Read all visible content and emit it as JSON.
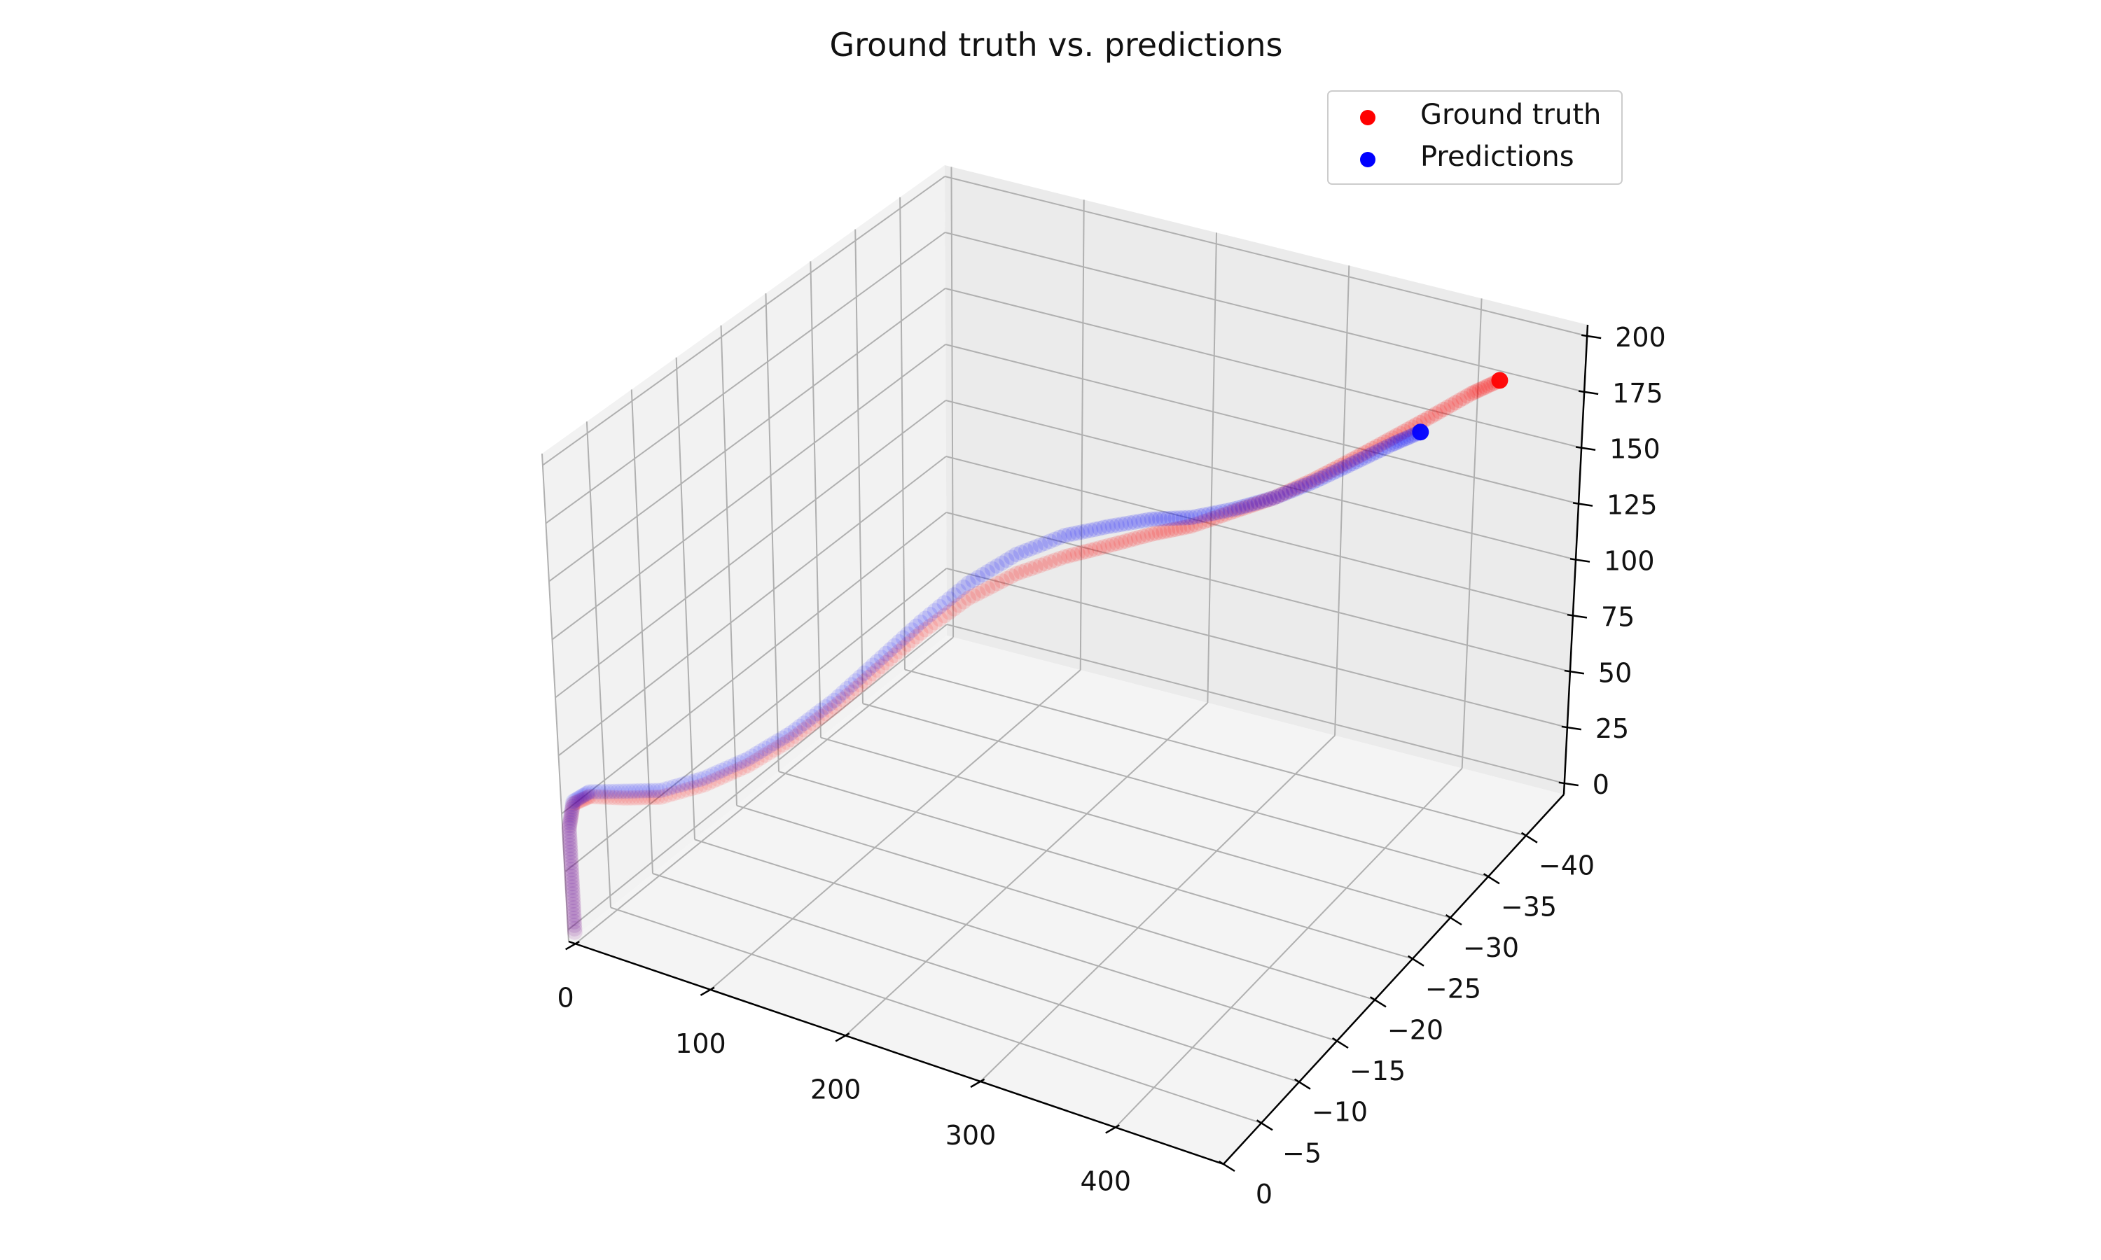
{
  "chart_data": {
    "type": "scatter",
    "projection": "3d",
    "title": "Ground truth vs. predictions",
    "xlabel": "",
    "ylabel": "",
    "zlabel": "",
    "xlim": [
      -5,
      480
    ],
    "ylim": [
      0,
      -45
    ],
    "zlim": [
      -5,
      205
    ],
    "x_ticks": [
      0,
      100,
      200,
      300,
      400
    ],
    "y_ticks": [
      0,
      -5,
      -10,
      -15,
      -20,
      -25,
      -30,
      -35,
      -40
    ],
    "z_ticks": [
      0,
      25,
      50,
      75,
      100,
      125,
      150,
      175,
      200
    ],
    "x_tick_labels": [
      "0",
      "100",
      "200",
      "300",
      "400"
    ],
    "y_tick_labels": [
      "0",
      "−5",
      "−10",
      "−15",
      "−20",
      "−25",
      "−30",
      "−35",
      "−40"
    ],
    "z_tick_labels": [
      "0",
      "25",
      "50",
      "75",
      "100",
      "125",
      "150",
      "175",
      "200"
    ],
    "grid": true,
    "legend_position": "top-right",
    "series": [
      {
        "name": "Ground truth",
        "color": "#ff0000",
        "points": [
          {
            "x": 0,
            "y": 0,
            "z": 0
          },
          {
            "x": 0,
            "y": 0,
            "z": 15
          },
          {
            "x": 0,
            "y": 0,
            "z": 30
          },
          {
            "x": 0,
            "y": 0,
            "z": 45
          },
          {
            "x": 2,
            "y": -0.3,
            "z": 55
          },
          {
            "x": 10,
            "y": -1,
            "z": 58
          },
          {
            "x": 30,
            "y": -2,
            "z": 59
          },
          {
            "x": 50,
            "y": -3,
            "z": 61
          },
          {
            "x": 70,
            "y": -5,
            "z": 65
          },
          {
            "x": 90,
            "y": -7,
            "z": 72
          },
          {
            "x": 110,
            "y": -9,
            "z": 82
          },
          {
            "x": 130,
            "y": -11,
            "z": 95
          },
          {
            "x": 150,
            "y": -13,
            "z": 110
          },
          {
            "x": 170,
            "y": -15,
            "z": 125
          },
          {
            "x": 190,
            "y": -17.5,
            "z": 137
          },
          {
            "x": 210,
            "y": -20,
            "z": 144
          },
          {
            "x": 230,
            "y": -22.5,
            "z": 147
          },
          {
            "x": 250,
            "y": -24.5,
            "z": 149
          },
          {
            "x": 270,
            "y": -26.5,
            "z": 151
          },
          {
            "x": 290,
            "y": -28,
            "z": 153
          },
          {
            "x": 310,
            "y": -30,
            "z": 156
          },
          {
            "x": 330,
            "y": -31.5,
            "z": 160
          },
          {
            "x": 350,
            "y": -33,
            "z": 166
          },
          {
            "x": 370,
            "y": -34.5,
            "z": 173
          },
          {
            "x": 390,
            "y": -36,
            "z": 180
          },
          {
            "x": 410,
            "y": -37.5,
            "z": 187
          },
          {
            "x": 430,
            "y": -39,
            "z": 194
          },
          {
            "x": 445,
            "y": -40,
            "z": 198
          }
        ]
      },
      {
        "name": "Predictions",
        "color": "#0000ff",
        "points": [
          {
            "x": 0,
            "y": 0,
            "z": 0
          },
          {
            "x": 0,
            "y": 0,
            "z": 15
          },
          {
            "x": 0,
            "y": 0,
            "z": 30
          },
          {
            "x": 0,
            "y": 0,
            "z": 45
          },
          {
            "x": 2,
            "y": -0.3,
            "z": 56
          },
          {
            "x": 10,
            "y": -1,
            "z": 60
          },
          {
            "x": 30,
            "y": -2,
            "z": 62
          },
          {
            "x": 50,
            "y": -3,
            "z": 64
          },
          {
            "x": 70,
            "y": -5,
            "z": 68
          },
          {
            "x": 90,
            "y": -7,
            "z": 75
          },
          {
            "x": 110,
            "y": -9,
            "z": 85
          },
          {
            "x": 130,
            "y": -11,
            "z": 98
          },
          {
            "x": 150,
            "y": -13,
            "z": 114
          },
          {
            "x": 170,
            "y": -15,
            "z": 130
          },
          {
            "x": 190,
            "y": -17.5,
            "z": 144
          },
          {
            "x": 210,
            "y": -20,
            "z": 153
          },
          {
            "x": 230,
            "y": -22.5,
            "z": 157
          },
          {
            "x": 250,
            "y": -24.5,
            "z": 158
          },
          {
            "x": 270,
            "y": -26.5,
            "z": 158
          },
          {
            "x": 290,
            "y": -28,
            "z": 157
          },
          {
            "x": 310,
            "y": -30,
            "z": 157
          },
          {
            "x": 330,
            "y": -31.5,
            "z": 160
          },
          {
            "x": 350,
            "y": -33,
            "z": 165
          },
          {
            "x": 370,
            "y": -34.5,
            "z": 171
          },
          {
            "x": 390,
            "y": -36,
            "z": 177
          },
          {
            "x": 405,
            "y": -37,
            "z": 181
          }
        ]
      }
    ]
  }
}
